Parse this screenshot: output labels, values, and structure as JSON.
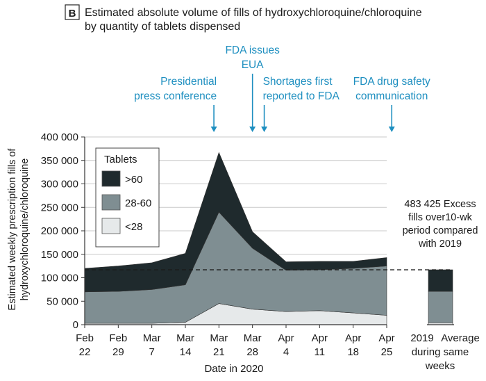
{
  "chart_data": {
    "type": "area",
    "panel_label": "B",
    "title_line1": "Estimated absolute volume of fills of hydroxychloroquine/chloroquine",
    "title_line2": "by quantity of tablets dispensed",
    "ylabel_line1": "Estimated weekly prescription fills of",
    "ylabel_line2": "hydroxychloroquine/chloroquine",
    "xlabel": "Date in 2020",
    "ylim": [
      0,
      400000
    ],
    "yticks": [
      "0",
      "50 000",
      "100 000",
      "150 000",
      "200 000",
      "250 000",
      "300 000",
      "350 000",
      "400 000"
    ],
    "categories": [
      {
        "month": "Feb",
        "day": "22"
      },
      {
        "month": "Feb",
        "day": "29"
      },
      {
        "month": "Mar",
        "day": "7"
      },
      {
        "month": "Mar",
        "day": "14"
      },
      {
        "month": "Mar",
        "day": "21"
      },
      {
        "month": "Mar",
        "day": "28"
      },
      {
        "month": "Apr",
        "day": "4"
      },
      {
        "month": "Apr",
        "day": "11"
      },
      {
        "month": "Apr",
        "day": "18"
      },
      {
        "month": "Apr",
        "day": "25"
      }
    ],
    "series": [
      {
        "name": "<28",
        "color": "#e6e9ea",
        "values": [
          3000,
          3000,
          3000,
          5000,
          45000,
          33000,
          28000,
          30000,
          25000,
          20000
        ]
      },
      {
        "name": "28-60",
        "color": "#7f8e92",
        "values": [
          67000,
          68000,
          72000,
          80000,
          195000,
          130000,
          88000,
          87000,
          95000,
          105000
        ]
      },
      {
        "name": ">60",
        "color": "#1f2a2d",
        "values": [
          50000,
          54000,
          57000,
          67000,
          127000,
          35000,
          18000,
          18000,
          15000,
          18000
        ]
      }
    ],
    "baseline_value": 117000,
    "comparison_bar": {
      "label_line1": "2019",
      "label_line2": "Average",
      "label_line3": "during same",
      "label_line4": "weeks",
      "values": {
        "<28": 4000,
        "28-60": 67000,
        ">60": 46000
      }
    },
    "legend": {
      "title": "Tablets",
      "position": "top-left",
      "items": [
        {
          "label": ">60",
          "color": "#1f2a2d"
        },
        {
          "label": "28-60",
          "color": "#7f8e92"
        },
        {
          "label": "<28",
          "color": "#e6e9ea"
        }
      ]
    },
    "annotations": [
      {
        "lines": [
          "Presidential",
          "press conference"
        ],
        "at_index": 3.85
      },
      {
        "lines": [
          "FDA issues",
          "EUA"
        ],
        "at_index": 5.0
      },
      {
        "lines": [
          "Shortages first",
          "reported to FDA"
        ],
        "at_index": 5.35
      },
      {
        "lines": [
          "FDA drug safety",
          "communication"
        ],
        "at_index": 9.15
      }
    ],
    "excess_note": [
      "483 425 Excess",
      "fills over10-wk",
      "period compared",
      "with 2019"
    ],
    "annotation_color": "#1e8fc0"
  }
}
